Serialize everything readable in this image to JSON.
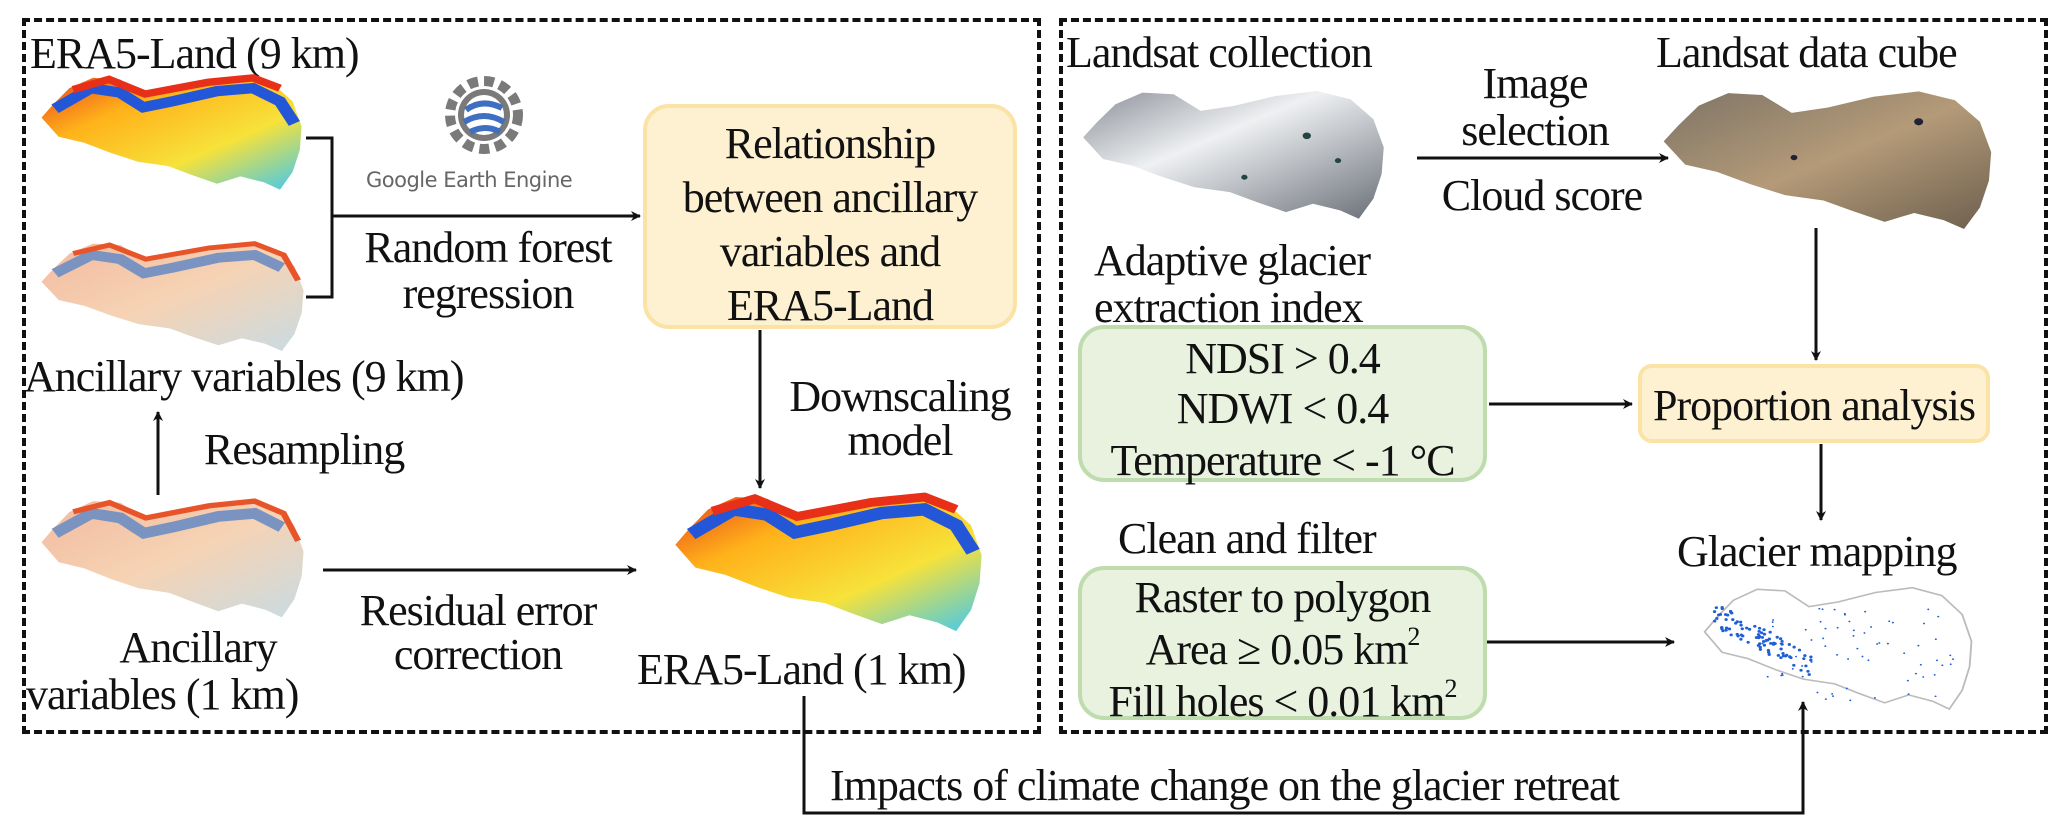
{
  "left_panel": {
    "era5_9km_label": "ERA5-Land (9 km)",
    "gee_logo_text": "Google Earth Engine",
    "rf_line1": "Random forest",
    "rf_line2": "regression",
    "relationship_lines": [
      "Relationship",
      "between ancillary",
      "variables and",
      "ERA5-Land"
    ],
    "ancillary_9km_label": "Ancillary variables (9 km)",
    "resampling_label": "Resampling",
    "downscaling_line1": "Downscaling",
    "downscaling_line2": "model",
    "ancillary_1km_line1": "Ancillary",
    "ancillary_1km_line2": "variables (1 km)",
    "residual_line1": "Residual error",
    "residual_line2": "correction",
    "era5_1km_label": "ERA5-Land (1 km)"
  },
  "right_panel": {
    "landsat_collection_label": "Landsat collection",
    "image_selection_line1": "Image",
    "image_selection_line2": "selection",
    "cloud_score_label": "Cloud score",
    "landsat_cube_label": "Landsat data cube",
    "index_line1": "Adaptive glacier",
    "index_line2": "extraction index",
    "index_rules": [
      "NDSI > 0.4",
      "NDWI < 0.4",
      "Temperature < -1 °C"
    ],
    "proportion_label": "Proportion analysis",
    "clean_filter_label": "Clean and filter",
    "clean_rules": {
      "r1": "Raster to polygon",
      "r2": "Area ≥ 0.05 km",
      "r3": "Fill holes < 0.01 km",
      "sup": "2"
    },
    "glacier_mapping_label": "Glacier mapping"
  },
  "bottom": {
    "impacts_label": "Impacts of climate change on the glacier retreat"
  },
  "colors": {
    "yellow_box": "#fdf1d2",
    "yellow_border": "#fbe3a6",
    "green_box": "#e8f2df",
    "green_border": "#bfdcae",
    "glacier_blue": "#1f5fd6"
  }
}
